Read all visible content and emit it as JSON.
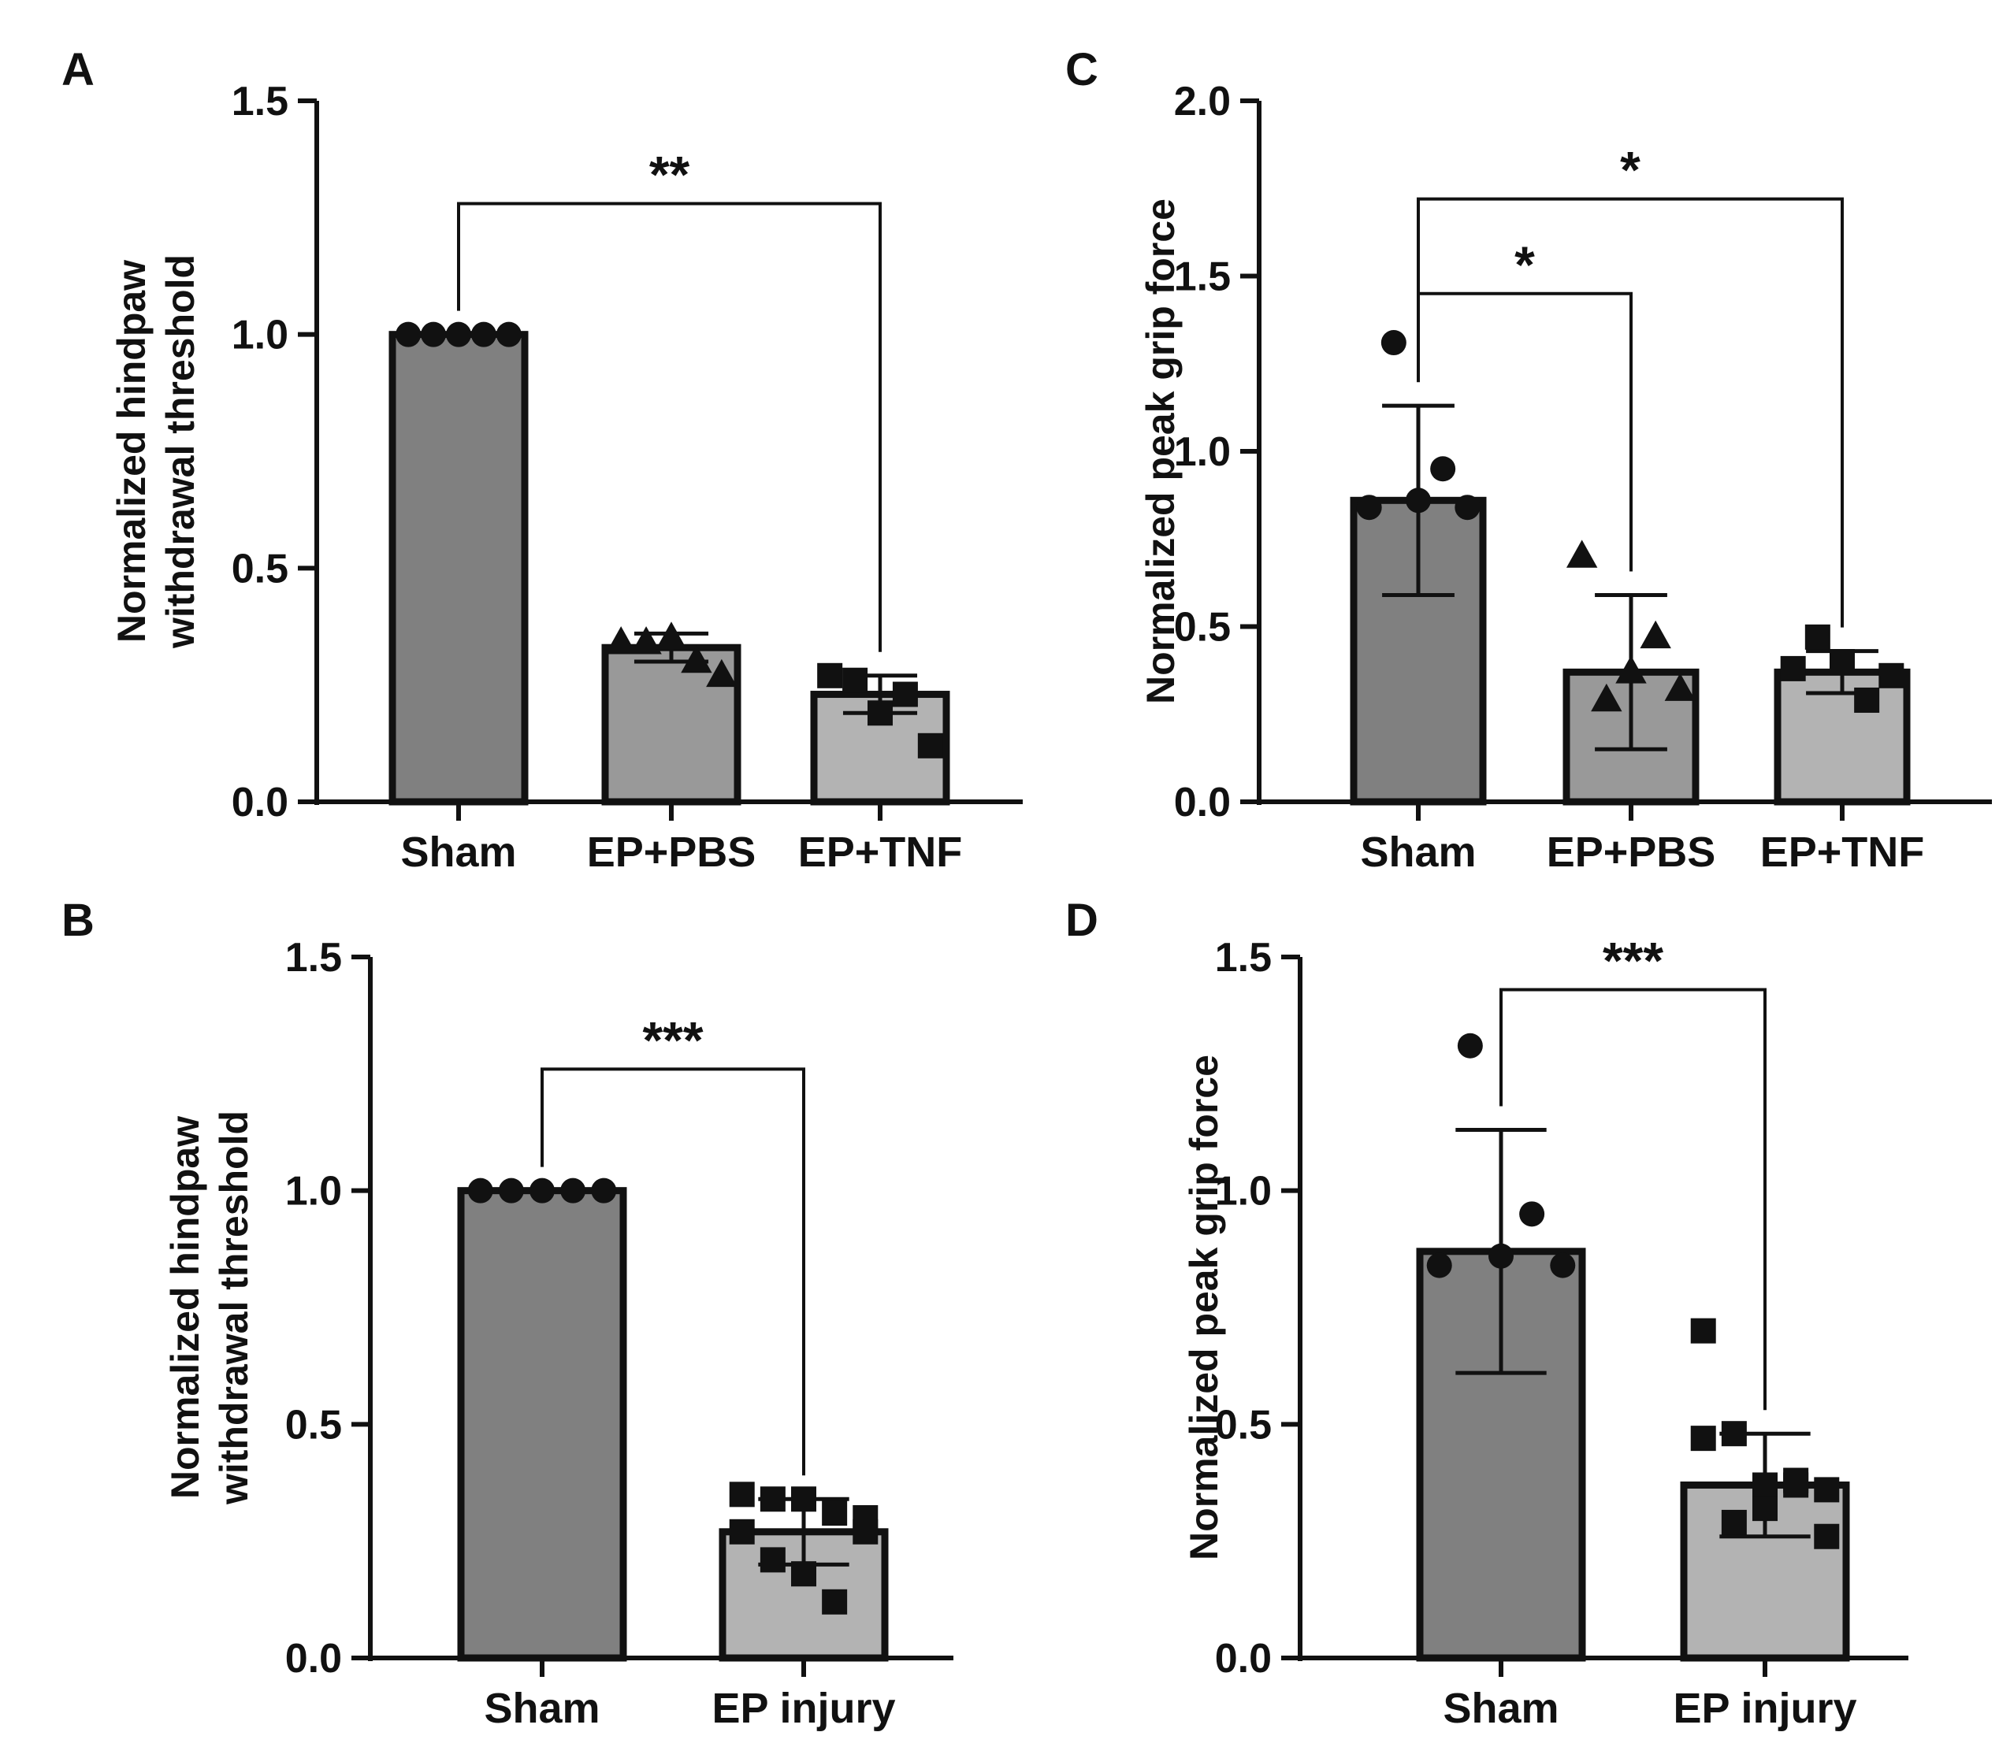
{
  "colors": {
    "sham_bar": "#808080",
    "treated_bar": "#999999",
    "tnf_bar": "#b3b3b3",
    "ink": "#111111"
  },
  "chart_data": [
    {
      "panel": "A",
      "type": "bar",
      "ylabel_lines": [
        "Normalized hindpaw",
        "withdrawal threshold"
      ],
      "ylim": [
        0,
        1.5
      ],
      "yticks": [
        0,
        0.5,
        1.0,
        1.5
      ],
      "ytick_labels": [
        "0.0",
        "0.5",
        "1.0",
        "1.5"
      ],
      "categories": [
        "Sham",
        "EP+PBS",
        "EP+TNF"
      ],
      "values": [
        1.0,
        0.33,
        0.23
      ],
      "sd": [
        0.0,
        0.03,
        0.04
      ],
      "points": [
        [
          1.0,
          1.0,
          1.0,
          1.0,
          1.0
        ],
        [
          0.34,
          0.34,
          0.35,
          0.3,
          0.27
        ],
        [
          0.27,
          0.26,
          0.19,
          0.23,
          0.12
        ]
      ],
      "markers": [
        "circle",
        "triangle",
        "square"
      ],
      "significance": [
        {
          "from": 0,
          "to": 2,
          "label": "**",
          "y": 1.28
        }
      ]
    },
    {
      "panel": "B",
      "type": "bar",
      "ylabel_lines": [
        "Normalized hindpaw",
        "withdrawal threshold"
      ],
      "ylim": [
        0,
        1.5
      ],
      "yticks": [
        0,
        0.5,
        1.0,
        1.5
      ],
      "ytick_labels": [
        "0.0",
        "0.5",
        "1.0",
        "1.5"
      ],
      "categories": [
        "Sham",
        "EP injury"
      ],
      "values": [
        1.0,
        0.27
      ],
      "sd": [
        0.0,
        0.07
      ],
      "points": [
        [
          1.0,
          1.0,
          1.0,
          1.0,
          1.0
        ],
        [
          0.35,
          0.34,
          0.34,
          0.31,
          0.27,
          0.27,
          0.21,
          0.18,
          0.12,
          0.3
        ]
      ],
      "markers": [
        "circle",
        "square"
      ],
      "significance": [
        {
          "from": 0,
          "to": 1,
          "label": "***",
          "y": 1.26
        }
      ]
    },
    {
      "panel": "C",
      "type": "bar",
      "ylabel_lines": [
        "Normalized peak grip force"
      ],
      "ylim": [
        0,
        2.0
      ],
      "yticks": [
        0,
        0.5,
        1.0,
        1.5,
        2.0
      ],
      "ytick_labels": [
        "0.0",
        "0.5",
        "1.0",
        "1.5",
        "2.0"
      ],
      "categories": [
        "Sham",
        "EP+PBS",
        "EP+TNF"
      ],
      "values": [
        0.86,
        0.37,
        0.37
      ],
      "sd": [
        0.27,
        0.22,
        0.06
      ],
      "points": [
        [
          0.84,
          1.31,
          0.86,
          0.95,
          0.84
        ],
        [
          0.7,
          0.29,
          0.37,
          0.47,
          0.32
        ],
        [
          0.38,
          0.47,
          0.4,
          0.29,
          0.36
        ]
      ],
      "markers": [
        "circle",
        "triangle",
        "square"
      ],
      "significance": [
        {
          "from": 0,
          "to": 1,
          "label": "*",
          "y": 1.45
        },
        {
          "from": 0,
          "to": 2,
          "label": "*",
          "y": 1.72
        }
      ]
    },
    {
      "panel": "D",
      "type": "bar",
      "ylabel_lines": [
        "Normalized peak grip force"
      ],
      "ylim": [
        0,
        1.5
      ],
      "yticks": [
        0,
        0.5,
        1.0,
        1.5
      ],
      "ytick_labels": [
        "0.0",
        "0.5",
        "1.0",
        "1.5"
      ],
      "categories": [
        "Sham",
        "EP injury"
      ],
      "values": [
        0.87,
        0.37
      ],
      "sd": [
        0.26,
        0.11
      ],
      "points": [
        [
          0.84,
          1.31,
          0.86,
          0.95,
          0.84
        ],
        [
          0.7,
          0.48,
          0.37,
          0.37,
          0.26,
          0.47,
          0.29,
          0.32,
          0.38,
          0.36
        ]
      ],
      "markers": [
        "circle",
        "square"
      ],
      "significance": [
        {
          "from": 0,
          "to": 1,
          "label": "***",
          "y": 1.43
        }
      ]
    }
  ]
}
